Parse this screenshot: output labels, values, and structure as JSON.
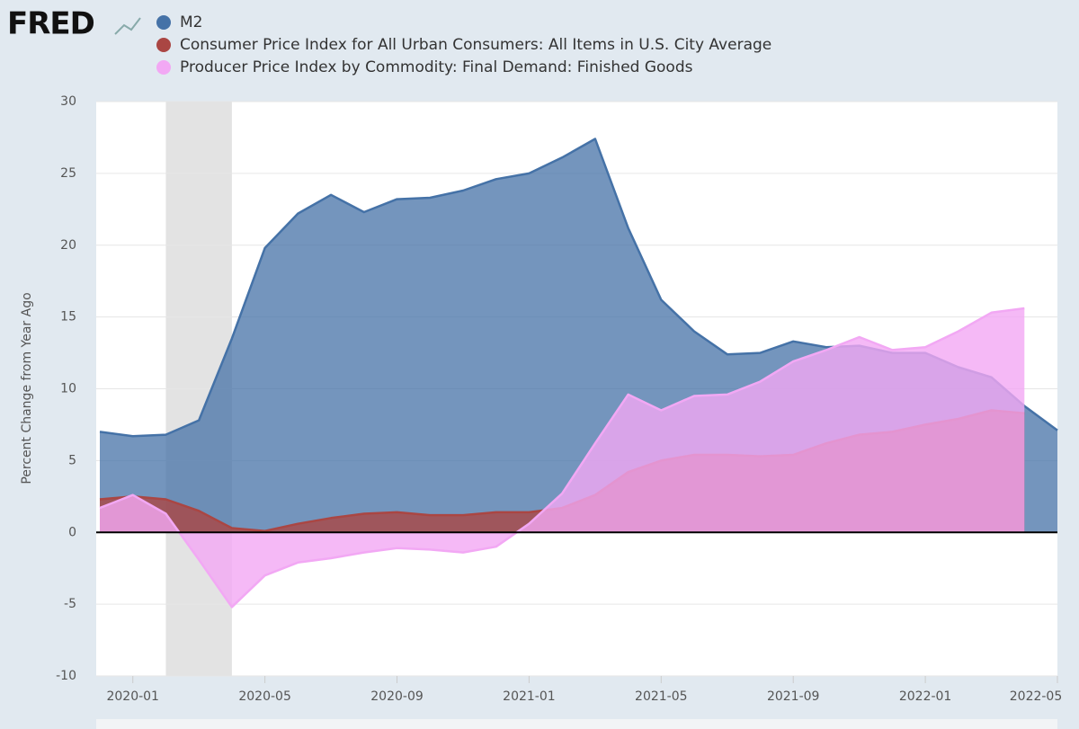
{
  "chart_data": {
    "type": "area",
    "logo": "FRED",
    "y_label": "Percent Change from Year Ago",
    "xlim": [
      "2019-12",
      "2022-05"
    ],
    "xticks": [
      "2020-01",
      "2020-05",
      "2020-09",
      "2021-01",
      "2021-05",
      "2021-09",
      "2022-01",
      "2022-05"
    ],
    "ylim": [
      -10,
      30
    ],
    "yticks": [
      -10,
      -5,
      0,
      5,
      10,
      15,
      20,
      25,
      30
    ],
    "grid": true,
    "recession": [
      "2020-02",
      "2020-04"
    ],
    "series": [
      {
        "name": "M2",
        "color": "#4572a7",
        "x": [
          "2019-12",
          "2020-01",
          "2020-02",
          "2020-03",
          "2020-04",
          "2020-05",
          "2020-06",
          "2020-07",
          "2020-08",
          "2020-09",
          "2020-10",
          "2020-11",
          "2020-12",
          "2021-01",
          "2021-02",
          "2021-03",
          "2021-04",
          "2021-05",
          "2021-06",
          "2021-07",
          "2021-08",
          "2021-09",
          "2021-10",
          "2021-11",
          "2021-12",
          "2022-01",
          "2022-02",
          "2022-03",
          "2022-04",
          "2022-05"
        ],
        "values": [
          7.0,
          6.7,
          6.8,
          7.8,
          13.5,
          19.8,
          22.2,
          23.5,
          22.3,
          23.2,
          23.3,
          23.8,
          24.6,
          25.0,
          26.1,
          27.4,
          21.2,
          16.2,
          14.0,
          12.4,
          12.5,
          13.3,
          12.9,
          13.0,
          12.5,
          12.5,
          11.5,
          10.8,
          8.8,
          7.1
        ]
      },
      {
        "name": "Consumer Price Index for All Urban Consumers: All Items in U.S. City Average",
        "color": "#aa4643",
        "x": [
          "2019-12",
          "2020-01",
          "2020-02",
          "2020-03",
          "2020-04",
          "2020-05",
          "2020-06",
          "2020-07",
          "2020-08",
          "2020-09",
          "2020-10",
          "2020-11",
          "2020-12",
          "2021-01",
          "2021-02",
          "2021-03",
          "2021-04",
          "2021-05",
          "2021-06",
          "2021-07",
          "2021-08",
          "2021-09",
          "2021-10",
          "2021-11",
          "2021-12",
          "2022-01",
          "2022-02",
          "2022-03",
          "2022-04"
        ],
        "values": [
          2.3,
          2.5,
          2.3,
          1.5,
          0.3,
          0.1,
          0.6,
          1.0,
          1.3,
          1.4,
          1.2,
          1.2,
          1.4,
          1.4,
          1.7,
          2.6,
          4.2,
          5.0,
          5.4,
          5.4,
          5.3,
          5.4,
          6.2,
          6.8,
          7.0,
          7.5,
          7.9,
          8.5,
          8.3
        ]
      },
      {
        "name": "Producer Price Index by Commodity: Final Demand: Finished Goods",
        "color": "#f2a8f4",
        "x": [
          "2019-12",
          "2020-01",
          "2020-02",
          "2020-03",
          "2020-04",
          "2020-05",
          "2020-06",
          "2020-07",
          "2020-08",
          "2020-09",
          "2020-10",
          "2020-11",
          "2020-12",
          "2021-01",
          "2021-02",
          "2021-03",
          "2021-04",
          "2021-05",
          "2021-06",
          "2021-07",
          "2021-08",
          "2021-09",
          "2021-10",
          "2021-11",
          "2021-12",
          "2022-01",
          "2022-02",
          "2022-03",
          "2022-04"
        ],
        "values": [
          1.7,
          2.6,
          1.3,
          -1.9,
          -5.2,
          -3.0,
          -2.1,
          -1.8,
          -1.4,
          -1.1,
          -1.2,
          -1.4,
          -1.0,
          0.6,
          2.7,
          6.2,
          9.6,
          8.5,
          9.5,
          9.6,
          10.5,
          11.9,
          12.7,
          13.6,
          12.7,
          12.9,
          14.0,
          15.3,
          15.6
        ]
      }
    ]
  }
}
